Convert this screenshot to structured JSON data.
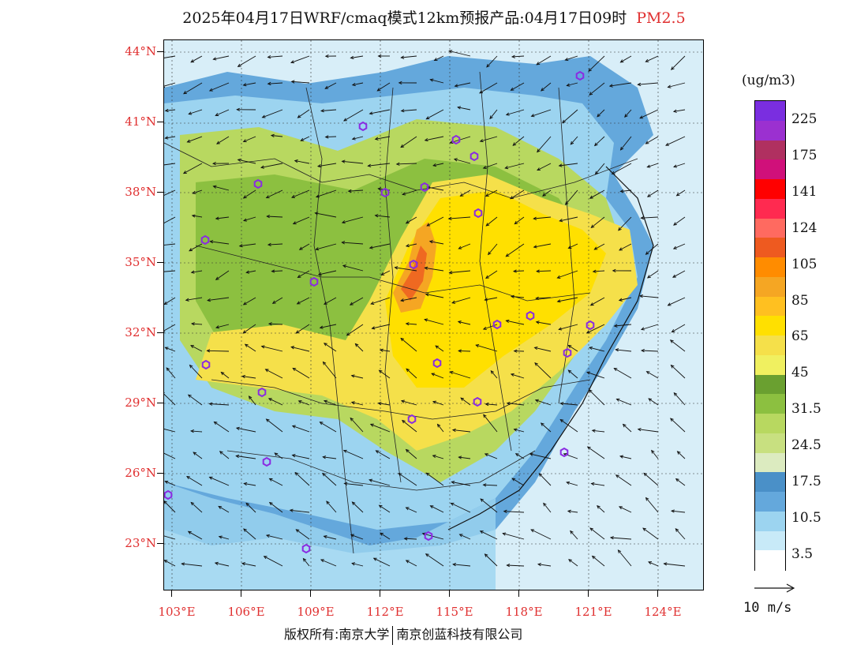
{
  "title": {
    "main": "2025年04月17日WRF/cmaq模式12km预报产品:04月17日09时",
    "pollutant": "PM2.5"
  },
  "map": {
    "lat_labels": [
      "44°N",
      "41°N",
      "38°N",
      "35°N",
      "32°N",
      "29°N",
      "26°N",
      "23°N"
    ],
    "lon_labels": [
      "103°E",
      "106°E",
      "109°E",
      "112°E",
      "115°E",
      "118°E",
      "121°E",
      "124°E"
    ],
    "stations_color": "#8a2be2"
  },
  "legend": {
    "unit": "(ug/m3)",
    "levels": [
      "225",
      "175",
      "141",
      "124",
      "105",
      "85",
      "65",
      "45",
      "31.5",
      "24.5",
      "17.5",
      "10.5",
      "3.5"
    ],
    "colors": [
      "#7a2ee0",
      "#9b30d0",
      "#b03060",
      "#d0107a",
      "#ff0000",
      "#ff2a50",
      "#ff6a60",
      "#ee5a20",
      "#ff8c00",
      "#f5a623",
      "#ffc020",
      "#ffe000",
      "#f5e04a",
      "#f0f060",
      "#6aa030",
      "#8cc040",
      "#b8d860",
      "#c8e080",
      "#dcebc0",
      "#4a90c8",
      "#64a8dc",
      "#9cd4f0",
      "#c8eaf8",
      "#ffffff"
    ],
    "wind_reference": "10 m/s"
  },
  "footer": {
    "copyright": "版权所有:南京大学",
    "company": "南京创蓝科技有限公司"
  }
}
